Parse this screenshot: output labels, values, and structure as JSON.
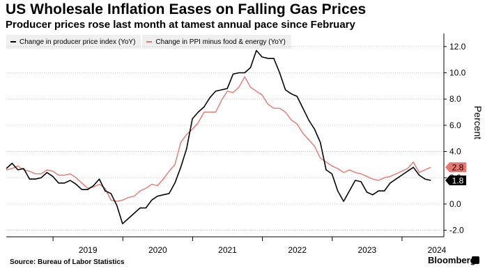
{
  "title": "US Wholesale Inflation Eases on Falling Gas Prices",
  "subtitle": "Producer prices rose last month at tamest annual pace since February",
  "source": "Source: Bureau of Labor Statistics",
  "brand": "Bloomberg",
  "chart_data": {
    "type": "line",
    "ylabel": "Percent",
    "xlabel": "",
    "ylim": [
      -2.5,
      13
    ],
    "yticks": [
      -2.0,
      0.0,
      2.0,
      4.0,
      6.0,
      8.0,
      10.0,
      12.0
    ],
    "ytick_labels": [
      "-2.0",
      "0.0",
      "2.0",
      "4.0",
      "6.0",
      "8.0",
      "10.0",
      "12.0"
    ],
    "xlim": [
      2018.33,
      2024.6
    ],
    "x_ticks_years": [
      "2019",
      "2020",
      "2021",
      "2022",
      "2023",
      "2024"
    ],
    "grid": "horizontal-dotted",
    "legend_position": "top-left",
    "series": [
      {
        "name": "Change in producer price index (YoY)",
        "color": "#000000",
        "start_x": 2018.33,
        "step": 0.08333,
        "end_label": "1.8",
        "values": [
          2.7,
          3.1,
          2.6,
          2.7,
          1.9,
          1.9,
          2.0,
          2.4,
          2.1,
          1.6,
          1.6,
          1.8,
          1.5,
          1.1,
          1.1,
          1.4,
          1.9,
          1.0,
          0.8,
          -0.1,
          -1.5,
          -1.1,
          -0.7,
          -0.3,
          -0.3,
          0.3,
          0.6,
          0.7,
          0.8,
          1.6,
          2.8,
          4.2,
          6.5,
          7.0,
          7.4,
          8.1,
          8.6,
          8.7,
          8.8,
          9.9,
          10.0,
          10.0,
          10.4,
          11.7,
          11.2,
          11.1,
          11.1,
          10.0,
          8.7,
          8.4,
          8.2,
          7.3,
          6.4,
          5.7,
          4.7,
          2.6,
          2.3,
          1.0,
          0.2,
          1.0,
          1.8,
          1.7,
          0.9,
          0.7,
          1.0,
          1.0,
          1.6,
          1.9,
          2.2,
          2.5,
          2.8,
          2.2,
          1.9,
          1.8
        ]
      },
      {
        "name": "Change in PPI minus food & energy (YoY)",
        "color": "#e8766e",
        "start_x": 2018.33,
        "step": 0.08333,
        "end_label": "2.8",
        "values": [
          2.6,
          2.7,
          2.9,
          2.6,
          2.5,
          2.3,
          2.3,
          2.6,
          2.5,
          2.2,
          2.2,
          2.3,
          2.0,
          1.6,
          1.2,
          1.3,
          1.5,
          1.2,
          0.3,
          0.2,
          0.3,
          0.5,
          0.6,
          1.0,
          1.2,
          1.5,
          1.4,
          1.9,
          2.5,
          3.0,
          4.7,
          5.3,
          5.7,
          6.2,
          7.0,
          7.0,
          7.0,
          7.9,
          8.6,
          8.5,
          8.9,
          9.7,
          8.9,
          8.6,
          8.3,
          7.6,
          7.3,
          7.3,
          7.0,
          6.4,
          6.1,
          5.4,
          4.9,
          4.4,
          3.5,
          3.2,
          2.9,
          2.7,
          2.4,
          2.6,
          2.4,
          2.3,
          2.1,
          1.9,
          1.8,
          2.0,
          2.1,
          2.3,
          2.5,
          2.7,
          3.2,
          2.4,
          2.6,
          2.8
        ]
      }
    ]
  }
}
